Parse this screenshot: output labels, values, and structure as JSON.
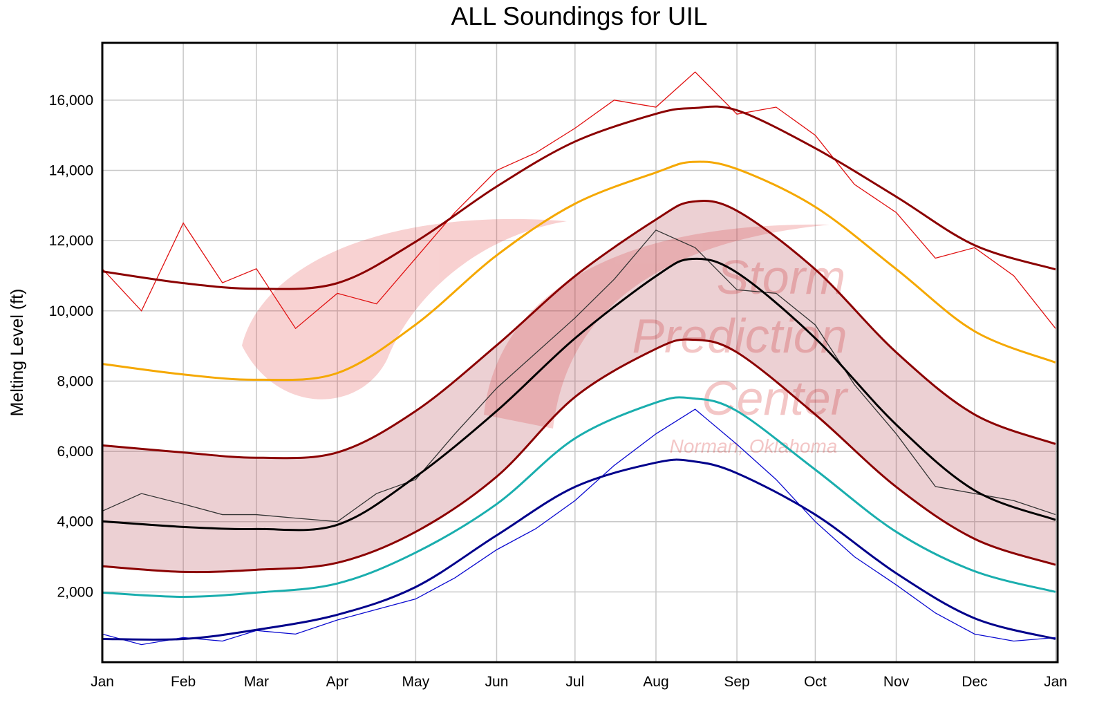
{
  "chart_data": {
    "type": "line",
    "title": "ALL Soundings for UIL",
    "xlabel": "",
    "ylabel": "Melting Level (ft)",
    "ylim": [
      0,
      17630
    ],
    "yticks": [
      2000,
      4000,
      6000,
      8000,
      10000,
      12000,
      14000,
      16000
    ],
    "ytick_labels": [
      "2,000",
      "4,000",
      "6,000",
      "8,000",
      "10,000",
      "12,000",
      "14,000",
      "16,000"
    ],
    "xticks": [
      "01-01",
      "02-01",
      "03-01",
      "04-01",
      "05-01",
      "06-01",
      "07-01",
      "08-01",
      "09-01",
      "10-01",
      "11-01",
      "12-01",
      "12-31"
    ],
    "xtick_labels": [
      "Jan",
      "Feb",
      "Mar",
      "Apr",
      "May",
      "Jun",
      "Jul",
      "Aug",
      "Sep",
      "Oct",
      "Nov",
      "Dec",
      "Jan"
    ],
    "grid": true,
    "watermark": {
      "lines": [
        "Storm",
        "Prediction",
        "Center",
        "Norman, Oklahoma"
      ]
    },
    "smooth_x": [
      "01-01",
      "02-01",
      "03-01",
      "04-01",
      "05-01",
      "06-01",
      "07-01",
      "08-01",
      "08-15",
      "09-01",
      "10-01",
      "11-01",
      "12-01",
      "12-31"
    ],
    "shaded_band": {
      "color": "#b4434f",
      "upper": "band_upper",
      "lower": "band_lower"
    },
    "smooth_series": [
      {
        "id": "smoothed_max",
        "color": "#8b0000",
        "values": [
          11125,
          10790,
          10630,
          10790,
          11970,
          13540,
          14820,
          15610,
          15770,
          15710,
          14630,
          13250,
          11870,
          11180
        ]
      },
      {
        "id": "orange",
        "color": "#f5a800",
        "values": [
          8490,
          8190,
          8040,
          8230,
          9610,
          11580,
          13050,
          13940,
          14240,
          14040,
          12960,
          11190,
          9420,
          8530
        ]
      },
      {
        "id": "band_upper",
        "color": "#8b0000",
        "values": [
          6170,
          5970,
          5820,
          5970,
          7150,
          9020,
          10990,
          12600,
          13110,
          12850,
          11180,
          8820,
          7050,
          6210
        ]
      },
      {
        "id": "mean",
        "color": "#000000",
        "values": [
          4010,
          3850,
          3790,
          3910,
          5280,
          7150,
          9220,
          10990,
          11480,
          11090,
          9220,
          6760,
          4890,
          4050
        ]
      },
      {
        "id": "band_lower",
        "color": "#8b0000",
        "values": [
          2730,
          2570,
          2630,
          2830,
          3710,
          5280,
          7550,
          8920,
          9180,
          8820,
          7050,
          4990,
          3510,
          2770
        ]
      },
      {
        "id": "cyan",
        "color": "#1aaeae",
        "values": [
          1980,
          1860,
          1980,
          2240,
          3120,
          4500,
          6370,
          7390,
          7510,
          7150,
          5480,
          3710,
          2590,
          2000
        ]
      },
      {
        "id": "smoothed_min",
        "color": "#00008b",
        "values": [
          660,
          660,
          920,
          1350,
          2140,
          3610,
          4990,
          5680,
          5720,
          5380,
          4200,
          2530,
          1250,
          660
        ]
      }
    ],
    "daily_x": [
      "01-01",
      "01-16",
      "02-01",
      "02-16",
      "03-01",
      "03-16",
      "04-01",
      "04-16",
      "05-01",
      "05-16",
      "06-01",
      "06-16",
      "07-01",
      "07-16",
      "08-01",
      "08-16",
      "09-01",
      "09-16",
      "10-01",
      "10-16",
      "11-01",
      "11-16",
      "12-01",
      "12-16",
      "12-31"
    ],
    "daily_series": [
      {
        "id": "daily_max",
        "color": "#e01010",
        "values": [
          11200,
          10000,
          12500,
          10800,
          11200,
          9500,
          10500,
          10200,
          11500,
          12800,
          14000,
          14500,
          15200,
          16000,
          15800,
          16800,
          15600,
          15800,
          15000,
          13600,
          12800,
          11500,
          11800,
          11000,
          9500
        ]
      },
      {
        "id": "daily_mean",
        "color": "#333333",
        "values": [
          4300,
          4800,
          4500,
          4200,
          4200,
          4100,
          4000,
          4800,
          5200,
          6500,
          7800,
          8800,
          9800,
          10900,
          12300,
          11800,
          10600,
          10500,
          9600,
          7900,
          6500,
          5000,
          4800,
          4600,
          4200
        ]
      },
      {
        "id": "daily_min",
        "color": "#0a0ad0",
        "values": [
          800,
          500,
          700,
          600,
          900,
          800,
          1200,
          1500,
          1800,
          2400,
          3200,
          3800,
          4600,
          5600,
          6500,
          7200,
          6200,
          5200,
          4000,
          3000,
          2200,
          1400,
          800,
          600,
          700
        ]
      }
    ]
  }
}
